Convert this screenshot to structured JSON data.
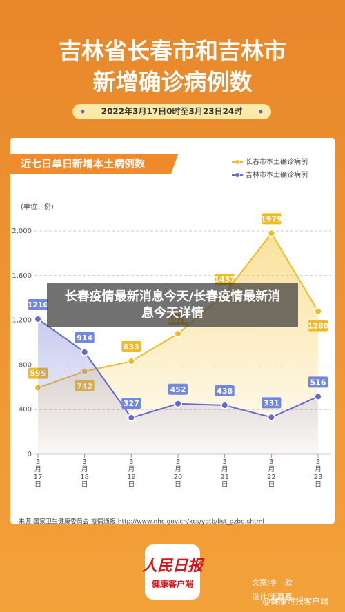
{
  "header": {
    "title_line1": "吉林省长春市和吉林市",
    "title_line2": "新增确诊病例数",
    "date_range": "2022年3月17日0时至3月23日24时"
  },
  "chart_data": {
    "type": "line",
    "title": "近七日单日新增本土病例数",
    "y_label": "(单位：例)",
    "categories": [
      "3月17日",
      "3月18日",
      "3月19日",
      "3月20日",
      "3月21日",
      "3月22日",
      "3月23日"
    ],
    "series": [
      {
        "name": "长春市本土确诊病例",
        "color": "#f2bb25",
        "values": [
          595,
          742,
          833,
          1079,
          1437,
          1979,
          1280
        ]
      },
      {
        "name": "吉林市本土确诊病例",
        "color": "#6468d2",
        "values": [
          1210,
          914,
          327,
          452,
          438,
          331,
          516
        ]
      }
    ],
    "ylim": [
      0,
      2000
    ],
    "yticks": [
      0,
      400,
      800,
      {
        "value": 1200,
        "label": "1,200"
      },
      {
        "value": 1600,
        "label": "1,600"
      },
      {
        "value": 2000,
        "label": "2,000"
      }
    ],
    "grid": true,
    "legend": "top-right"
  },
  "source": "来源:国家卫生健康委员会,疫情通报,http://www.nhc.gov.cn/xcs/yqtb/list_gzbd.shtml",
  "overlay_title": "长春疫情最新消息今天/长春疫情最新消息今天详情",
  "footer": {
    "logo_name": "人民日报",
    "logo_sub": "健康客户端",
    "copywriter": "文案/李　欣",
    "designer": "设计/王鑫鑫",
    "watermark": "@健康时报客户端"
  }
}
